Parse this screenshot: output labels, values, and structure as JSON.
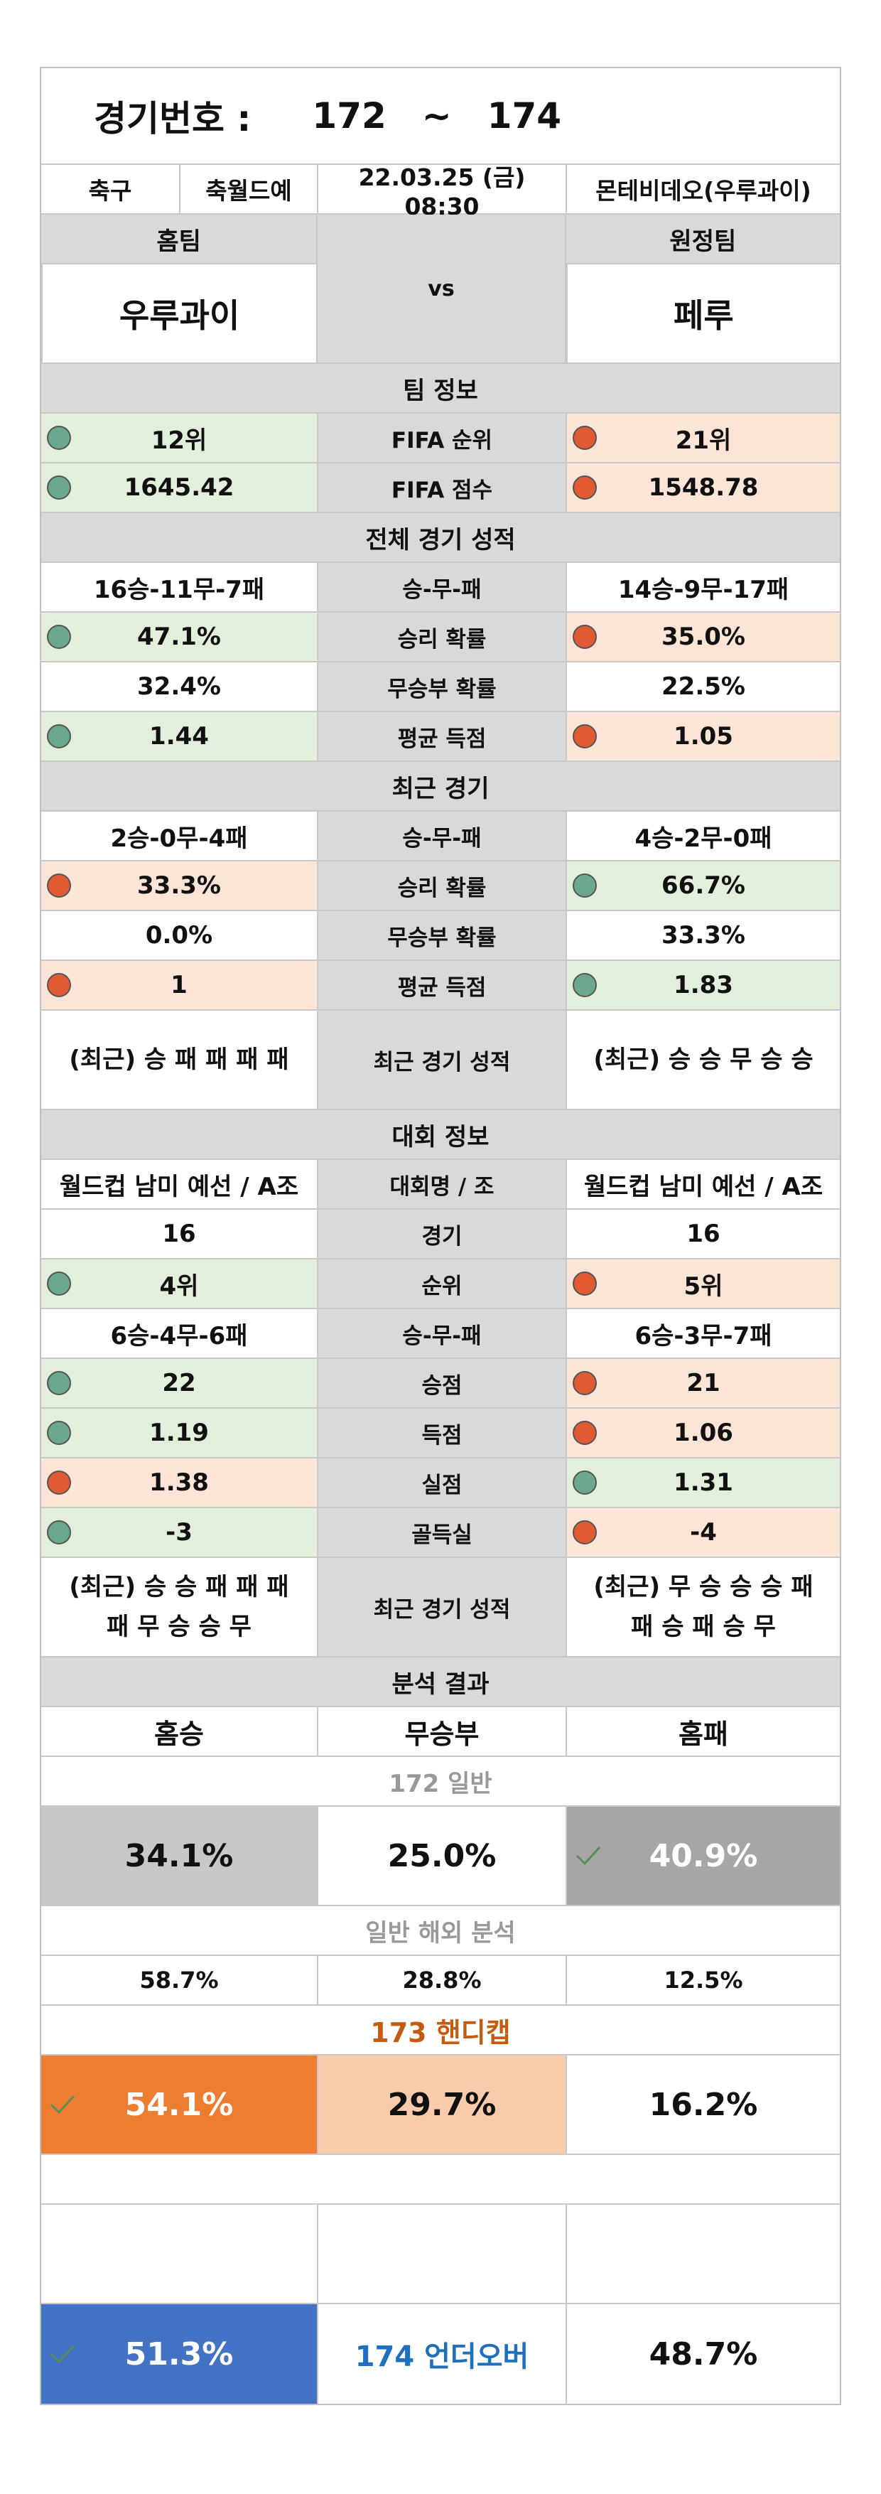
{
  "header": {
    "label": "경기번호 :",
    "start": "172",
    "sep": "~",
    "end": "174"
  },
  "info": {
    "sport": "축구",
    "league": "축월드예",
    "datetime": "22.03.25 (금) 08:30",
    "venue": "몬테비데오(우루과이)"
  },
  "teams": {
    "home_label": "홈팀",
    "away_label": "원정팀",
    "home": "우루과이",
    "vs": "vs",
    "away": "페루"
  },
  "sections": {
    "team_info": "팀 정보",
    "overall": "전체 경기 성적",
    "recent": "최근 경기",
    "tournament": "대회 정보",
    "analysis": "분석 결과"
  },
  "team_info_rows": [
    {
      "label": "FIFA 순위",
      "home": "12위",
      "away": "21위",
      "home_status": "good",
      "away_status": "bad"
    },
    {
      "label": "FIFA 점수",
      "home": "1645.42",
      "away": "1548.78",
      "home_status": "good",
      "away_status": "bad"
    }
  ],
  "overall_rows": [
    {
      "label": "승-무-패",
      "home": "16승-11무-7패",
      "away": "14승-9무-17패",
      "home_status": "none",
      "away_status": "none"
    },
    {
      "label": "승리 확률",
      "home": "47.1%",
      "away": "35.0%",
      "home_status": "good",
      "away_status": "bad"
    },
    {
      "label": "무승부 확률",
      "home": "32.4%",
      "away": "22.5%",
      "home_status": "none",
      "away_status": "none"
    },
    {
      "label": "평균 득점",
      "home": "1.44",
      "away": "1.05",
      "home_status": "good",
      "away_status": "bad"
    }
  ],
  "recent_rows": [
    {
      "label": "승-무-패",
      "home": "2승-0무-4패",
      "away": "4승-2무-0패",
      "home_status": "none",
      "away_status": "none"
    },
    {
      "label": "승리 확률",
      "home": "33.3%",
      "away": "66.7%",
      "home_status": "bad",
      "away_status": "good"
    },
    {
      "label": "무승부 확률",
      "home": "0.0%",
      "away": "33.3%",
      "home_status": "none",
      "away_status": "none"
    },
    {
      "label": "평균 득점",
      "home": "1",
      "away": "1.83",
      "home_status": "bad",
      "away_status": "good"
    }
  ],
  "recent_form": {
    "label": "최근 경기 성적",
    "home": "(최근) 승 패 패 패 패",
    "away": "(최근) 승 승 무 승 승"
  },
  "tournament_rows": [
    {
      "label": "대회명 / 조",
      "home": "월드컵 남미 예선 / A조",
      "away": "월드컵 남미 예선 / A조",
      "home_status": "none",
      "away_status": "none"
    },
    {
      "label": "경기",
      "home": "16",
      "away": "16",
      "home_status": "none",
      "away_status": "none"
    },
    {
      "label": "순위",
      "home": "4위",
      "away": "5위",
      "home_status": "good",
      "away_status": "bad"
    },
    {
      "label": "승-무-패",
      "home": "6승-4무-6패",
      "away": "6승-3무-7패",
      "home_status": "none",
      "away_status": "none"
    },
    {
      "label": "승점",
      "home": "22",
      "away": "21",
      "home_status": "good",
      "away_status": "bad"
    },
    {
      "label": "득점",
      "home": "1.19",
      "away": "1.06",
      "home_status": "good",
      "away_status": "bad"
    },
    {
      "label": "실점",
      "home": "1.38",
      "away": "1.31",
      "home_status": "bad",
      "away_status": "good"
    },
    {
      "label": "골득실",
      "home": "-3",
      "away": "-4",
      "home_status": "good",
      "away_status": "bad"
    }
  ],
  "tournament_form": {
    "label": "최근 경기 성적",
    "home_line1": "(최근) 승 승 패 패 패",
    "home_line2": "패 무 승 승 무",
    "away_line1": "(최근) 무 승 승 승 패",
    "away_line2": "패 승 패 승 무"
  },
  "analysis": {
    "col_home": "홈승",
    "col_draw": "무승부",
    "col_away": "홈패",
    "general": {
      "title": "172 일반",
      "home": "34.1%",
      "draw": "25.0%",
      "away": "40.9%"
    },
    "overseas": {
      "title": "일반 해외 분석",
      "home": "58.7%",
      "draw": "28.8%",
      "away": "12.5%"
    },
    "handicap": {
      "title": "173 핸디캡",
      "home": "54.1%",
      "draw": "29.7%",
      "away": "16.2%"
    },
    "underover": {
      "label": "174 언더오버",
      "under": "51.3%",
      "over": "48.7%"
    }
  },
  "colors": {
    "good": "#6aa88d",
    "bad": "#e05a33",
    "good_bg": "#e2efda",
    "bad_bg": "#fce4d6",
    "header_bg": "#d9d9d9",
    "orange": "#ed7d31",
    "blue": "#4472c4"
  }
}
